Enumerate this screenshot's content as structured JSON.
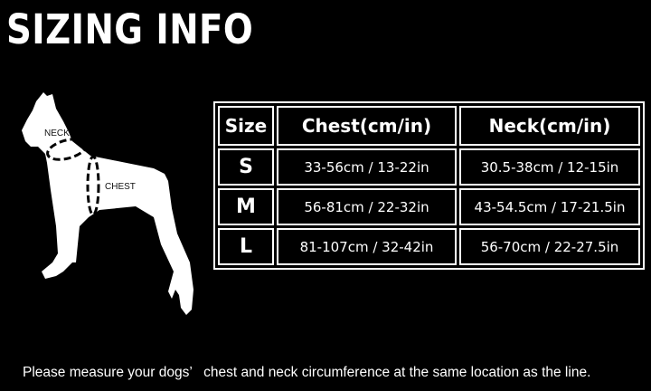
{
  "title": "SIZING INFO",
  "diagram": {
    "neck_label": "NECK",
    "chest_label": "CHEST"
  },
  "table": {
    "headers": [
      "Size",
      "Chest(cm/in)",
      "Neck(cm/in)"
    ],
    "rows": [
      {
        "size": "S",
        "chest": "33-56cm / 13-22in",
        "neck": "30.5-38cm / 12-15in"
      },
      {
        "size": "M",
        "chest": "56-81cm / 22-32in",
        "neck": "43-54.5cm / 17-21.5in"
      },
      {
        "size": "L",
        "chest": "81-107cm / 32-42in",
        "neck": "56-70cm / 22-27.5in"
      }
    ]
  },
  "footer": "Please measure your dogs’   chest and neck circumference at the same location as the line."
}
